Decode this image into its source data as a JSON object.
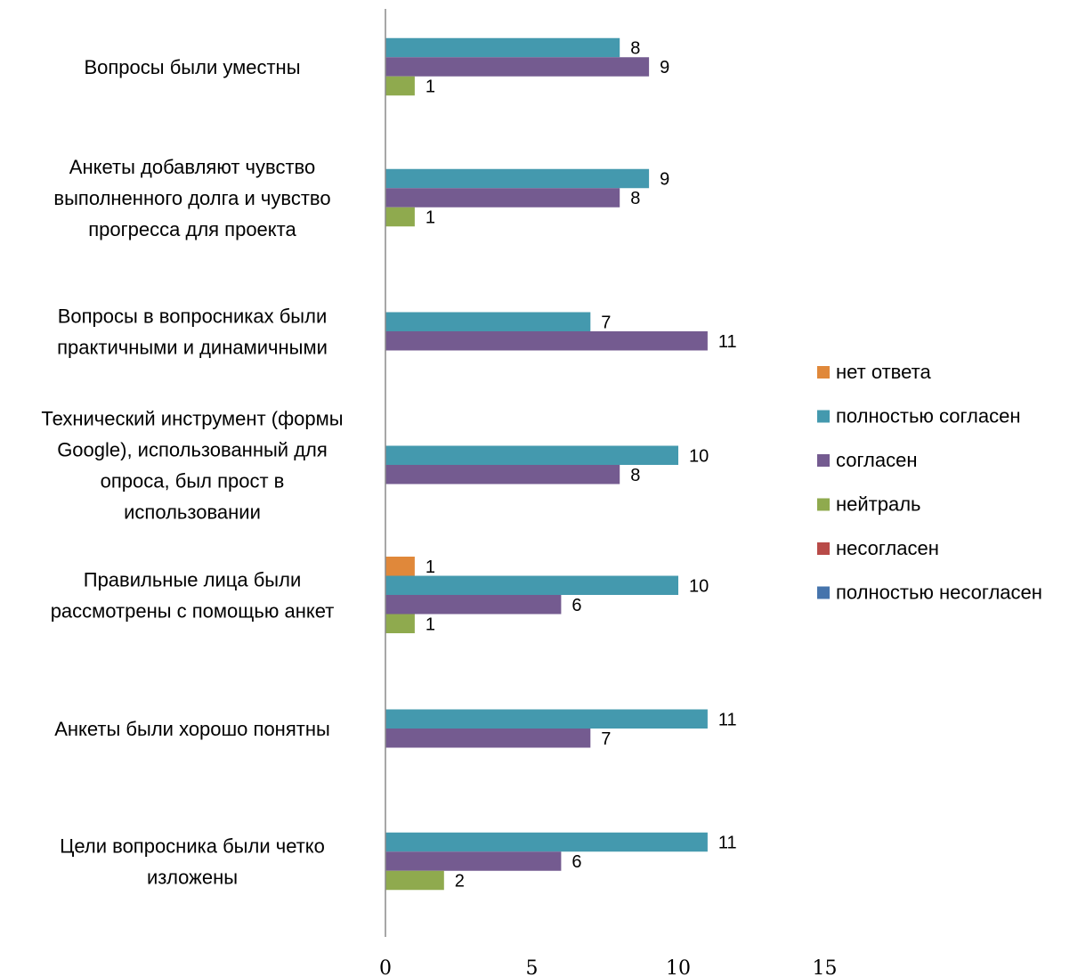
{
  "chart_data": {
    "type": "bar",
    "orientation": "horizontal",
    "title": "",
    "xlabel": "",
    "ylabel": "",
    "xlim": [
      0,
      15
    ],
    "x_ticks": [
      "0",
      "5",
      "10",
      "15"
    ],
    "grid": false,
    "legend_position": "right",
    "categories": [
      "Вопросы были уместны",
      "Анкеты добавляют чувство выполненного долга и чувство прогресса для проекта",
      "Вопросы в вопросниках были практичными и динамичными",
      "Технический инструмент (формы Google), использованный для опроса, был прост в использовании",
      "Правильные лица были рассмотрены с помощью анкет",
      "Анкеты были хорошо понятны",
      "Цели вопросника были четко изложены"
    ],
    "category_lines": [
      [
        "Вопросы были уместны"
      ],
      [
        "Анкеты добавляют чувство",
        "выполненного долга и чувство",
        "прогресса для проекта"
      ],
      [
        "Вопросы в вопросниках были",
        "практичными и динамичными"
      ],
      [
        "Технический инструмент (формы",
        "Google), использованный для",
        "опроса, был прост в",
        "использовании"
      ],
      [
        "Правильные лица были",
        "рассмотрены с помощью анкет"
      ],
      [
        "Анкеты были хорошо понятны"
      ],
      [
        "Цели вопросника были четко",
        "изложены"
      ]
    ],
    "series": [
      {
        "name": "нет ответа",
        "color": "#E0883A",
        "values": [
          0,
          0,
          0,
          0,
          1,
          0,
          0
        ]
      },
      {
        "name": "полностью согласен",
        "color": "#4499AE",
        "values": [
          8,
          9,
          7,
          10,
          10,
          11,
          11
        ]
      },
      {
        "name": "согласен",
        "color": "#745B90",
        "values": [
          9,
          8,
          11,
          8,
          6,
          7,
          6
        ]
      },
      {
        "name": "нейтраль",
        "color": "#8FAA4E",
        "values": [
          1,
          1,
          0,
          0,
          1,
          0,
          2
        ]
      },
      {
        "name": "несогласен",
        "color": "#B84B48",
        "values": [
          0,
          0,
          0,
          0,
          0,
          0,
          0
        ]
      },
      {
        "name": "полностью несогласен",
        "color": "#4674AC",
        "values": [
          0,
          0,
          0,
          0,
          0,
          0,
          0
        ]
      }
    ]
  }
}
